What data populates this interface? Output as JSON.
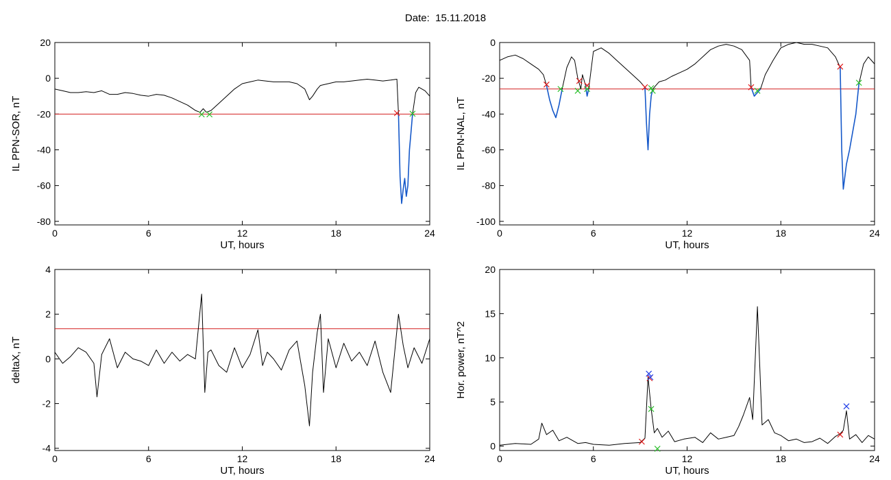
{
  "header": {
    "date_label": "Date:",
    "date_value": "15.11.2018"
  },
  "colors": {
    "trace": "#000000",
    "segment": "#1558c9",
    "threshold": "#d21e1e",
    "cross_red": "#e01818",
    "cross_green": "#2cbf2c",
    "cross_blue": "#1e3ce6"
  },
  "chart_data": [
    {
      "id": "ppn-sor",
      "type": "line",
      "xlabel": "UT, hours",
      "ylabel": "IL PPN-SOR, nT",
      "xlim": [
        0,
        24
      ],
      "ylim": [
        -82,
        20
      ],
      "xticks": [
        0,
        6,
        12,
        18,
        24
      ],
      "yticks": [
        20,
        0,
        -20,
        -40,
        -60,
        -80
      ],
      "threshold": -20,
      "series": [
        {
          "role": "main",
          "x": [
            0,
            0.5,
            1,
            1.5,
            2,
            2.5,
            3,
            3.5,
            4,
            4.5,
            5,
            5.5,
            6,
            6.5,
            7,
            7.5,
            8,
            8.5,
            9,
            9.3,
            9.5,
            9.7,
            10,
            10.5,
            11,
            11.5,
            12,
            12.5,
            13,
            13.5,
            14,
            14.5,
            15,
            15.5,
            16,
            16.3,
            16.5,
            16.8,
            17,
            17.5,
            18,
            18.5,
            19,
            19.5,
            20,
            20.5,
            21,
            21.5,
            21.9,
            22.0
          ],
          "y": [
            -6,
            -7,
            -8,
            -8,
            -7.5,
            -8,
            -7,
            -9,
            -9,
            -8,
            -8.5,
            -9.5,
            -10,
            -9,
            -9.5,
            -11,
            -13,
            -15,
            -18,
            -19,
            -17,
            -19,
            -18,
            -14,
            -10,
            -6,
            -3,
            -2,
            -1,
            -1.5,
            -2,
            -2,
            -2,
            -3,
            -6,
            -12,
            -10,
            -6,
            -4,
            -3,
            -2,
            -2,
            -1.5,
            -1,
            -0.5,
            -1,
            -1.5,
            -1,
            -0.5,
            -20
          ]
        },
        {
          "role": "event",
          "x": [
            22.0,
            22.1,
            22.2,
            22.3,
            22.4,
            22.5,
            22.6,
            22.7,
            22.8,
            22.9
          ],
          "y": [
            -20,
            -55,
            -70,
            -62,
            -56,
            -66,
            -60,
            -40,
            -30,
            -20
          ]
        },
        {
          "role": "main",
          "x": [
            22.9,
            23.1,
            23.3,
            23.5,
            23.7,
            24
          ],
          "y": [
            -20,
            -8,
            -5,
            -6,
            -7,
            -10
          ]
        }
      ],
      "markers": [
        {
          "color": "red",
          "points": [
            [
              21.9,
              -19.5
            ]
          ]
        },
        {
          "color": "green",
          "points": [
            [
              9.4,
              -20.2
            ],
            [
              9.9,
              -20.2
            ],
            [
              22.9,
              -19.8
            ]
          ]
        }
      ]
    },
    {
      "id": "ppn-nal",
      "type": "line",
      "xlabel": "UT, hours",
      "ylabel": "IL PPN-NAL, nT",
      "xlim": [
        0,
        24
      ],
      "ylim": [
        -102,
        0
      ],
      "xticks": [
        0,
        6,
        12,
        18,
        24
      ],
      "yticks": [
        0,
        -20,
        -40,
        -60,
        -80,
        -100
      ],
      "threshold": -26,
      "series": [
        {
          "role": "main",
          "x": [
            0,
            0.5,
            1,
            1.5,
            2,
            2.5,
            2.8,
            3.0
          ],
          "y": [
            -10,
            -8,
            -7,
            -9,
            -12,
            -15,
            -18,
            -24
          ]
        },
        {
          "role": "event",
          "x": [
            3.0,
            3.2,
            3.4,
            3.6,
            3.8,
            4.0
          ],
          "y": [
            -24,
            -32,
            -38,
            -42,
            -35,
            -26
          ]
        },
        {
          "role": "main",
          "x": [
            4.0,
            4.3,
            4.6,
            4.8,
            5.0,
            5.2,
            5.3,
            5.5
          ],
          "y": [
            -26,
            -14,
            -8,
            -10,
            -20,
            -26,
            -18,
            -24
          ]
        },
        {
          "role": "event",
          "x": [
            5.5,
            5.6,
            5.7
          ],
          "y": [
            -24,
            -30,
            -26
          ]
        },
        {
          "role": "main",
          "x": [
            5.7,
            6,
            6.5,
            7,
            7.5,
            8,
            8.5,
            9,
            9.3
          ],
          "y": [
            -26,
            -5,
            -3,
            -6,
            -10,
            -14,
            -18,
            -22,
            -25
          ]
        },
        {
          "role": "event",
          "x": [
            9.3,
            9.4,
            9.5,
            9.6,
            9.7,
            9.8
          ],
          "y": [
            -25,
            -45,
            -60,
            -40,
            -30,
            -26
          ]
        },
        {
          "role": "main",
          "x": [
            9.8,
            10.2,
            10.6,
            11,
            11.5,
            12,
            12.5,
            13,
            13.5,
            14,
            14.5,
            15,
            15.5,
            16,
            16.1
          ],
          "y": [
            -26,
            -22,
            -21,
            -19,
            -17,
            -15,
            -12,
            -8,
            -4,
            -2,
            -1,
            -2,
            -4,
            -10,
            -25
          ]
        },
        {
          "role": "event",
          "x": [
            16.1,
            16.3,
            16.5,
            16.7
          ],
          "y": [
            -25,
            -30,
            -28,
            -26
          ]
        },
        {
          "role": "main",
          "x": [
            16.7,
            17,
            17.5,
            18,
            18.5,
            19,
            19.5,
            20,
            20.5,
            21,
            21.5,
            21.8
          ],
          "y": [
            -26,
            -18,
            -10,
            -3,
            -1,
            0,
            -1,
            -1,
            -2,
            -3,
            -8,
            -14
          ]
        },
        {
          "role": "event",
          "x": [
            21.8,
            21.9,
            22.0,
            22.2,
            22.4,
            22.6,
            22.8,
            23.0
          ],
          "y": [
            -14,
            -60,
            -82,
            -68,
            -60,
            -50,
            -40,
            -23
          ]
        },
        {
          "role": "main",
          "x": [
            23.0,
            23.3,
            23.6,
            24
          ],
          "y": [
            -23,
            -12,
            -8,
            -12
          ]
        }
      ],
      "markers": [
        {
          "color": "red",
          "points": [
            [
              3.0,
              -23.5
            ],
            [
              5.1,
              -21.5
            ],
            [
              5.6,
              -24
            ],
            [
              9.3,
              -25
            ],
            [
              16.1,
              -25
            ],
            [
              21.8,
              -13.5
            ]
          ]
        },
        {
          "color": "green",
          "points": [
            [
              3.9,
              -26
            ],
            [
              5.0,
              -27
            ],
            [
              5.6,
              -26
            ],
            [
              9.7,
              -25.5
            ],
            [
              9.8,
              -27
            ],
            [
              16.5,
              -27
            ],
            [
              23.0,
              -22.5
            ]
          ]
        }
      ]
    },
    {
      "id": "deltax",
      "type": "line",
      "xlabel": "UT, hours",
      "ylabel": "deltaX, nT",
      "xlim": [
        0,
        24
      ],
      "ylim": [
        -4.1,
        4
      ],
      "xticks": [
        0,
        6,
        12,
        18,
        24
      ],
      "yticks": [
        4,
        2,
        0,
        -2,
        -4
      ],
      "threshold": 1.35,
      "series": [
        {
          "role": "main",
          "x": [
            0,
            0.5,
            1,
            1.5,
            2,
            2.5,
            2.7,
            3,
            3.5,
            4,
            4.5,
            5,
            5.5,
            6,
            6.5,
            7,
            7.5,
            8,
            8.5,
            9,
            9.4,
            9.6,
            9.8,
            10,
            10.5,
            11,
            11.5,
            12,
            12.5,
            13,
            13.3,
            13.6,
            14,
            14.5,
            15,
            15.5,
            16,
            16.3,
            16.5,
            16.8,
            17,
            17.2,
            17.5,
            18,
            18.5,
            19,
            19.5,
            20,
            20.5,
            21,
            21.5,
            22,
            22.3,
            22.6,
            23,
            23.5,
            24
          ],
          "y": [
            0.3,
            -0.2,
            0.1,
            0.5,
            0.3,
            -0.2,
            -1.7,
            0.2,
            0.9,
            -0.4,
            0.3,
            0.0,
            -0.1,
            -0.3,
            0.4,
            -0.2,
            0.3,
            -0.1,
            0.2,
            0.0,
            2.9,
            -1.5,
            0.3,
            0.4,
            -0.3,
            -0.6,
            0.5,
            -0.4,
            0.2,
            1.3,
            -0.3,
            0.3,
            0.0,
            -0.5,
            0.4,
            0.8,
            -1.2,
            -3.0,
            -0.6,
            1.2,
            2.0,
            -1.5,
            0.9,
            -0.4,
            0.7,
            -0.1,
            0.3,
            -0.3,
            0.8,
            -0.6,
            -1.5,
            2.0,
            0.6,
            -0.4,
            0.5,
            -0.2,
            0.9
          ]
        }
      ],
      "markers": []
    },
    {
      "id": "hor-power",
      "type": "line",
      "xlabel": "UT, hours",
      "ylabel": "Hor. power, nT^2",
      "xlim": [
        0,
        24
      ],
      "ylim": [
        -0.5,
        20
      ],
      "xticks": [
        0,
        6,
        12,
        18,
        24
      ],
      "yticks": [
        20,
        15,
        10,
        5,
        0
      ],
      "threshold": null,
      "series": [
        {
          "role": "main",
          "x": [
            0,
            1,
            2,
            2.5,
            2.7,
            3.0,
            3.4,
            3.8,
            4.3,
            5,
            5.5,
            6,
            7,
            8,
            9,
            9.3,
            9.5,
            9.7,
            9.9,
            10.1,
            10.4,
            10.8,
            11.2,
            11.8,
            12.5,
            13,
            13.5,
            14,
            14.5,
            15,
            15.3,
            15.6,
            16.0,
            16.2,
            16.5,
            16.8,
            17.2,
            17.6,
            18,
            18.5,
            19,
            19.5,
            20,
            20.5,
            21,
            21.5,
            21.8,
            22.0,
            22.2,
            22.4,
            22.8,
            23.2,
            23.6,
            24
          ],
          "y": [
            0.1,
            0.3,
            0.2,
            0.8,
            2.6,
            1.3,
            1.8,
            0.6,
            1.0,
            0.3,
            0.4,
            0.2,
            0.1,
            0.3,
            0.4,
            0.9,
            7.8,
            4.2,
            1.5,
            2.0,
            1.0,
            1.7,
            0.5,
            0.8,
            1.0,
            0.4,
            1.5,
            0.8,
            1.0,
            1.2,
            2.2,
            3.5,
            5.5,
            3.0,
            15.8,
            2.4,
            3.0,
            1.5,
            1.2,
            0.6,
            0.8,
            0.4,
            0.5,
            0.9,
            0.3,
            1.1,
            1.4,
            1.8,
            4.0,
            0.8,
            1.3,
            0.4,
            1.2,
            0.8
          ]
        }
      ],
      "markers": [
        {
          "color": "red",
          "points": [
            [
              9.1,
              0.5
            ],
            [
              9.6,
              7.7
            ],
            [
              21.8,
              1.3
            ]
          ]
        },
        {
          "color": "green",
          "points": [
            [
              9.7,
              4.2
            ],
            [
              10.1,
              -0.3
            ]
          ]
        },
        {
          "color": "blue",
          "points": [
            [
              9.55,
              8.2
            ],
            [
              9.65,
              7.8
            ],
            [
              22.2,
              4.5
            ]
          ]
        }
      ]
    }
  ]
}
